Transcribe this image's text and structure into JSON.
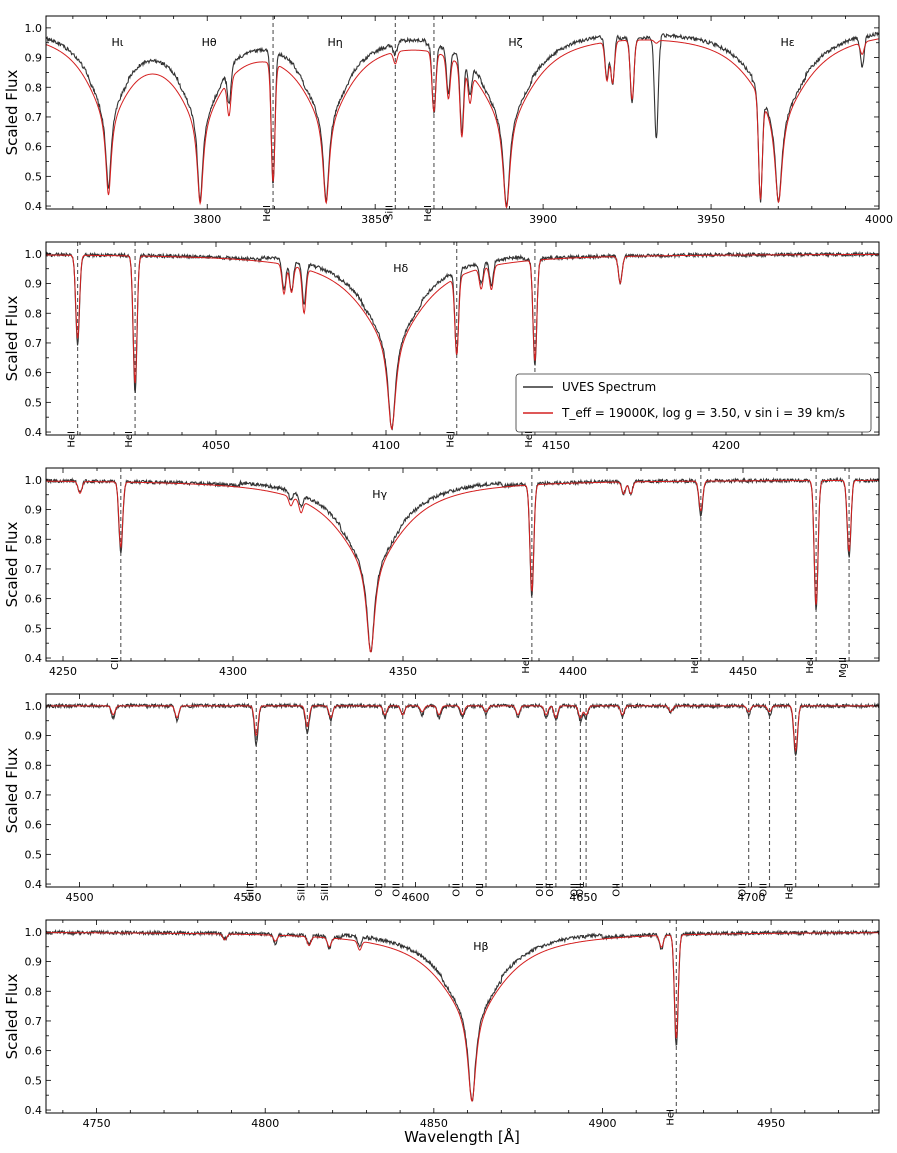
{
  "figure": {
    "xlabel": "Wavelength [Å]",
    "colors": {
      "observed": "#333333",
      "model": "#d42020",
      "marker": "#555555"
    }
  },
  "legend": {
    "entries": [
      {
        "label": "UVES Spectrum",
        "color": "#333333"
      },
      {
        "label": "T_eff = 19000K, log g = 3.50,  v sin i = 39 km/s",
        "color": "#d42020"
      }
    ]
  },
  "chart_data": [
    {
      "type": "line",
      "ylabel": "Scaled Flux",
      "xlim": [
        3752,
        4000
      ],
      "ylim": [
        0.39,
        1.04
      ],
      "xticks": [
        3800,
        3850,
        3900,
        3950,
        4000
      ],
      "yticks": [
        0.4,
        0.5,
        0.6,
        0.7,
        0.8,
        0.9,
        1.0
      ],
      "series": [
        {
          "name": "UVES Spectrum",
          "role": "observed"
        },
        {
          "name": "T_eff = 19000K, log g = 3.50, v sin i = 39 km/s",
          "role": "model"
        }
      ],
      "balmer_lines": [
        {
          "label": "Hι",
          "center": 3770.6,
          "depth_obs": 0.47,
          "depth_mod": 0.47,
          "width": 7.5
        },
        {
          "label": "Hθ",
          "center": 3797.9,
          "depth_obs": 0.45,
          "depth_mod": 0.45,
          "width": 8
        },
        {
          "label": "Hη",
          "center": 3835.4,
          "depth_obs": 0.44,
          "depth_mod": 0.44,
          "width": 8.5
        },
        {
          "label": "Hζ",
          "center": 3889.1,
          "depth_obs": 0.41,
          "depth_mod": 0.41,
          "width": 9.5
        },
        {
          "label": "Hε",
          "center": 3970.1,
          "depth_obs": 0.42,
          "depth_mod": 0.42,
          "width": 10
        }
      ],
      "marked_lines": [
        {
          "label": "HeI",
          "wavelength": 3819.6,
          "depth_obs": 0.55,
          "depth_mod": 0.6
        },
        {
          "label": "SiII",
          "wavelength": 3856.0,
          "depth_obs": 0.96,
          "depth_mod": 0.96
        },
        {
          "label": "HeI",
          "wavelength": 3867.5,
          "depth_obs": 0.77,
          "depth_mod": 0.8
        }
      ],
      "other_lines": [
        {
          "wavelength": 3806.5,
          "depth_obs": 0.88,
          "depth_mod": 0.88
        },
        {
          "wavelength": 3871.8,
          "depth_obs": 0.85,
          "depth_mod": 0.86
        },
        {
          "wavelength": 3875.8,
          "depth_obs": 0.75,
          "depth_mod": 0.76
        },
        {
          "wavelength": 3878.2,
          "depth_obs": 0.9,
          "depth_mod": 0.9
        },
        {
          "wavelength": 3919.0,
          "depth_obs": 0.86,
          "depth_mod": 0.87
        },
        {
          "wavelength": 3920.7,
          "depth_obs": 0.84,
          "depth_mod": 0.86
        },
        {
          "wavelength": 3926.5,
          "depth_obs": 0.78,
          "depth_mod": 0.8
        },
        {
          "wavelength": 3933.7,
          "depth_obs": 0.66,
          "depth_mod": 0.99
        },
        {
          "wavelength": 3964.7,
          "depth_obs": 0.64,
          "depth_mod": 0.66
        },
        {
          "wavelength": 3995.0,
          "depth_obs": 0.9,
          "depth_mod": 0.96
        }
      ]
    },
    {
      "type": "line",
      "ylabel": "Scaled Flux",
      "xlim": [
        4000,
        4245
      ],
      "ylim": [
        0.39,
        1.04
      ],
      "xticks": [
        4050,
        4100,
        4150,
        4200
      ],
      "yticks": [
        0.4,
        0.5,
        0.6,
        0.7,
        0.8,
        0.9,
        1.0
      ],
      "series": [
        {
          "name": "UVES Spectrum",
          "role": "observed"
        },
        {
          "name": "T_eff = 19000K, log g = 3.50, v sin i = 39 km/s",
          "role": "model"
        }
      ],
      "balmer_lines": [
        {
          "label": "Hδ",
          "center": 4101.7,
          "depth_obs": 0.41,
          "depth_mod": 0.41,
          "width": 11
        }
      ],
      "marked_lines": [
        {
          "label": "HeI",
          "wavelength": 4009.3,
          "depth_obs": 0.7,
          "depth_mod": 0.72
        },
        {
          "label": "HeI",
          "wavelength": 4026.2,
          "depth_obs": 0.54,
          "depth_mod": 0.57
        },
        {
          "label": "HeI",
          "wavelength": 4120.8,
          "depth_obs": 0.72,
          "depth_mod": 0.74
        },
        {
          "label": "HeI",
          "wavelength": 4143.8,
          "depth_obs": 0.64,
          "depth_mod": 0.66
        }
      ],
      "other_lines": [
        {
          "wavelength": 4070.0,
          "depth_obs": 0.9,
          "depth_mod": 0.9
        },
        {
          "wavelength": 4072.2,
          "depth_obs": 0.9,
          "depth_mod": 0.91
        },
        {
          "wavelength": 4075.9,
          "depth_obs": 0.86,
          "depth_mod": 0.85
        },
        {
          "wavelength": 4128.0,
          "depth_obs": 0.93,
          "depth_mod": 0.93
        },
        {
          "wavelength": 4131.0,
          "depth_obs": 0.92,
          "depth_mod": 0.92
        },
        {
          "wavelength": 4168.9,
          "depth_obs": 0.91,
          "depth_mod": 0.91
        }
      ]
    },
    {
      "type": "line",
      "ylabel": "Scaled Flux",
      "xlim": [
        4245,
        4490
      ],
      "ylim": [
        0.39,
        1.04
      ],
      "xticks": [
        4250,
        4300,
        4350,
        4400,
        4450
      ],
      "yticks": [
        0.4,
        0.5,
        0.6,
        0.7,
        0.8,
        0.9,
        1.0
      ],
      "series": [
        {
          "name": "UVES Spectrum",
          "role": "observed"
        },
        {
          "name": "T_eff = 19000K, log g = 3.50, v sin i = 39 km/s",
          "role": "model"
        }
      ],
      "balmer_lines": [
        {
          "label": "Hγ",
          "center": 4340.5,
          "depth_obs": 0.42,
          "depth_mod": 0.42,
          "width": 11
        }
      ],
      "marked_lines": [
        {
          "label": "CII",
          "wavelength": 4267.0,
          "depth_obs": 0.76,
          "depth_mod": 0.78
        },
        {
          "label": "HeI",
          "wavelength": 4387.9,
          "depth_obs": 0.62,
          "depth_mod": 0.64
        },
        {
          "label": "HeI",
          "wavelength": 4437.6,
          "depth_obs": 0.88,
          "depth_mod": 0.9
        },
        {
          "label": "HeI",
          "wavelength": 4471.5,
          "depth_obs": 0.56,
          "depth_mod": 0.58
        },
        {
          "label": "MgII",
          "wavelength": 4481.2,
          "depth_obs": 0.74,
          "depth_mod": 0.76
        }
      ],
      "other_lines": [
        {
          "wavelength": 4255.0,
          "depth_obs": 0.96,
          "depth_mod": 0.96
        },
        {
          "wavelength": 4317.0,
          "depth_obs": 0.97,
          "depth_mod": 0.97
        },
        {
          "wavelength": 4320.0,
          "depth_obs": 0.96,
          "depth_mod": 0.96
        },
        {
          "wavelength": 4414.9,
          "depth_obs": 0.96,
          "depth_mod": 0.96
        },
        {
          "wavelength": 4417.0,
          "depth_obs": 0.96,
          "depth_mod": 0.96
        }
      ]
    },
    {
      "type": "line",
      "ylabel": "Scaled Flux",
      "xlim": [
        4490,
        4738
      ],
      "ylim": [
        0.39,
        1.04
      ],
      "xticks": [
        4500,
        4550,
        4600,
        4650,
        4700
      ],
      "yticks": [
        0.4,
        0.5,
        0.6,
        0.7,
        0.8,
        0.9,
        1.0
      ],
      "series": [
        {
          "name": "UVES Spectrum",
          "role": "observed"
        },
        {
          "name": "T_eff = 19000K, log g = 3.50, v sin i = 39 km/s",
          "role": "model"
        }
      ],
      "balmer_lines": [],
      "marked_lines": [
        {
          "label": "SiIII",
          "wavelength": 4552.6,
          "depth_obs": 0.87,
          "depth_mod": 0.9
        },
        {
          "label": "SiIII",
          "wavelength": 4567.8,
          "depth_obs": 0.91,
          "depth_mod": 0.93
        },
        {
          "label": "SiIII",
          "wavelength": 4574.8,
          "depth_obs": 0.95,
          "depth_mod": 0.96
        },
        {
          "label": "OII",
          "wavelength": 4590.9,
          "depth_obs": 0.96,
          "depth_mod": 0.97
        },
        {
          "label": "OII",
          "wavelength": 4596.2,
          "depth_obs": 0.97,
          "depth_mod": 0.97
        },
        {
          "label": "OII",
          "wavelength": 4614.0,
          "depth_obs": 0.96,
          "depth_mod": 0.97
        },
        {
          "label": "OII",
          "wavelength": 4621.0,
          "depth_obs": 0.97,
          "depth_mod": 0.98
        },
        {
          "label": "OII",
          "wavelength": 4638.9,
          "depth_obs": 0.96,
          "depth_mod": 0.97
        },
        {
          "label": "OII",
          "wavelength": 4641.8,
          "depth_obs": 0.95,
          "depth_mod": 0.96
        },
        {
          "label": "OII",
          "wavelength": 4649.1,
          "depth_obs": 0.95,
          "depth_mod": 0.96
        },
        {
          "label": "OII",
          "wavelength": 4650.8,
          "depth_obs": 0.96,
          "depth_mod": 0.97
        },
        {
          "label": "OII",
          "wavelength": 4661.6,
          "depth_obs": 0.96,
          "depth_mod": 0.97
        },
        {
          "label": "OII",
          "wavelength": 4699.2,
          "depth_obs": 0.97,
          "depth_mod": 0.98
        },
        {
          "label": "OII",
          "wavelength": 4705.4,
          "depth_obs": 0.97,
          "depth_mod": 0.98
        },
        {
          "label": "HeI",
          "wavelength": 4713.2,
          "depth_obs": 0.83,
          "depth_mod": 0.85
        }
      ],
      "other_lines": [
        {
          "wavelength": 4510.0,
          "depth_obs": 0.96,
          "depth_mod": 0.97
        },
        {
          "wavelength": 4529.0,
          "depth_obs": 0.95,
          "depth_mod": 0.96
        },
        {
          "wavelength": 4602.0,
          "depth_obs": 0.97,
          "depth_mod": 0.98
        },
        {
          "wavelength": 4607.0,
          "depth_obs": 0.96,
          "depth_mod": 0.97
        },
        {
          "wavelength": 4630.5,
          "depth_obs": 0.96,
          "depth_mod": 0.97
        },
        {
          "wavelength": 4676.0,
          "depth_obs": 0.98,
          "depth_mod": 0.98
        }
      ]
    },
    {
      "type": "line",
      "ylabel": "Scaled Flux",
      "xlim": [
        4735,
        4982
      ],
      "ylim": [
        0.39,
        1.04
      ],
      "xticks": [
        4750,
        4800,
        4850,
        4900,
        4950
      ],
      "yticks": [
        0.4,
        0.5,
        0.6,
        0.7,
        0.8,
        0.9,
        1.0
      ],
      "series": [
        {
          "name": "UVES Spectrum",
          "role": "observed"
        },
        {
          "name": "T_eff = 19000K, log g = 3.50, v sin i = 39 km/s",
          "role": "model"
        }
      ],
      "balmer_lines": [
        {
          "label": "Hβ",
          "center": 4861.3,
          "depth_obs": 0.43,
          "depth_mod": 0.43,
          "width": 11
        }
      ],
      "marked_lines": [
        {
          "label": "HeI",
          "wavelength": 4921.9,
          "depth_obs": 0.62,
          "depth_mod": 0.65
        }
      ],
      "other_lines": [
        {
          "wavelength": 4788.0,
          "depth_obs": 0.98,
          "depth_mod": 0.98
        },
        {
          "wavelength": 4803.0,
          "depth_obs": 0.97,
          "depth_mod": 0.98
        },
        {
          "wavelength": 4813.0,
          "depth_obs": 0.97,
          "depth_mod": 0.97
        },
        {
          "wavelength": 4819.0,
          "depth_obs": 0.96,
          "depth_mod": 0.97
        },
        {
          "wavelength": 4828.0,
          "depth_obs": 0.97,
          "depth_mod": 0.97
        },
        {
          "wavelength": 4917.5,
          "depth_obs": 0.95,
          "depth_mod": 0.96
        }
      ]
    }
  ]
}
